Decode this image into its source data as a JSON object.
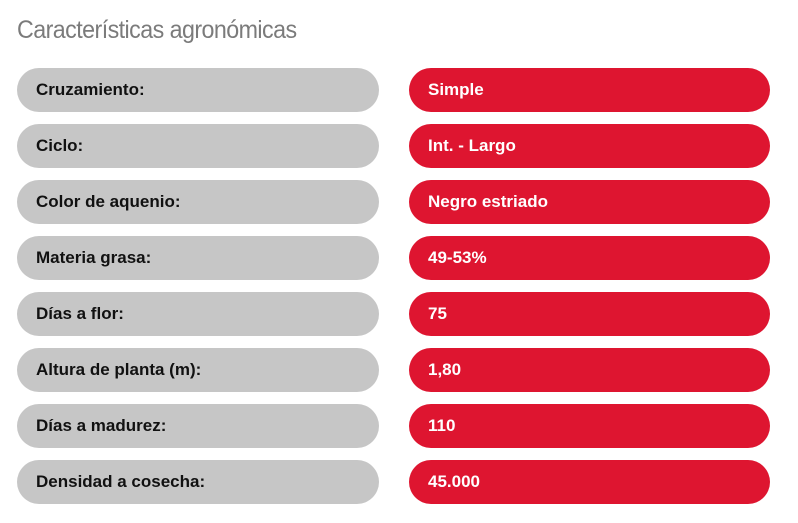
{
  "title": "Características agronómicas",
  "colors": {
    "label_background": "#c6c6c6",
    "value_background": "#de1530",
    "title_text": "#7b7b7b"
  },
  "rows": [
    {
      "label": "Cruzamiento:",
      "value": "Simple"
    },
    {
      "label": "Ciclo:",
      "value": "Int. - Largo"
    },
    {
      "label": "Color de aquenio:",
      "value": "Negro estriado"
    },
    {
      "label": "Materia grasa:",
      "value": "49-53%"
    },
    {
      "label": "Días a flor:",
      "value": "75"
    },
    {
      "label": "Altura de planta (m):",
      "value": "1,80"
    },
    {
      "label": "Días a madurez:",
      "value": "110"
    },
    {
      "label": "Densidad a cosecha:",
      "value": "45.000"
    }
  ]
}
